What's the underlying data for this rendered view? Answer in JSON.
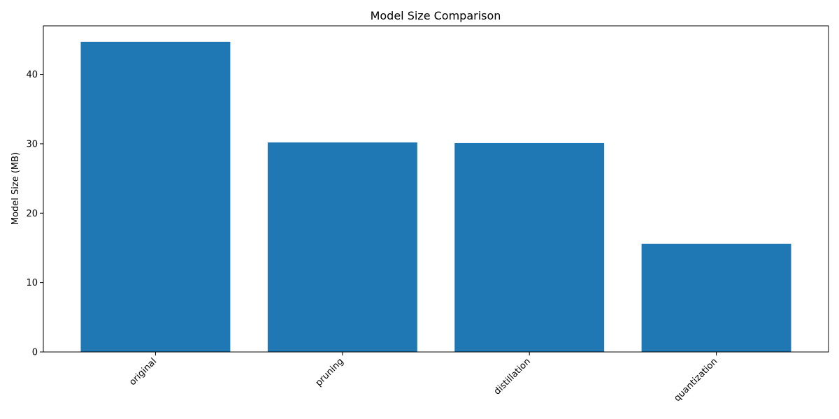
{
  "chart_data": {
    "type": "bar",
    "title": "Model Size Comparison",
    "xlabel": "",
    "ylabel": "Model Size (MB)",
    "categories": [
      "original",
      "pruning",
      "distillation",
      "quantization"
    ],
    "values": [
      44.7,
      30.2,
      30.1,
      15.6
    ],
    "ylim": [
      0,
      47
    ],
    "yticks": [
      0,
      10,
      20,
      30,
      40
    ],
    "bar_color": "#1f77b4",
    "grid": false,
    "xtick_rotation_deg": 45
  }
}
